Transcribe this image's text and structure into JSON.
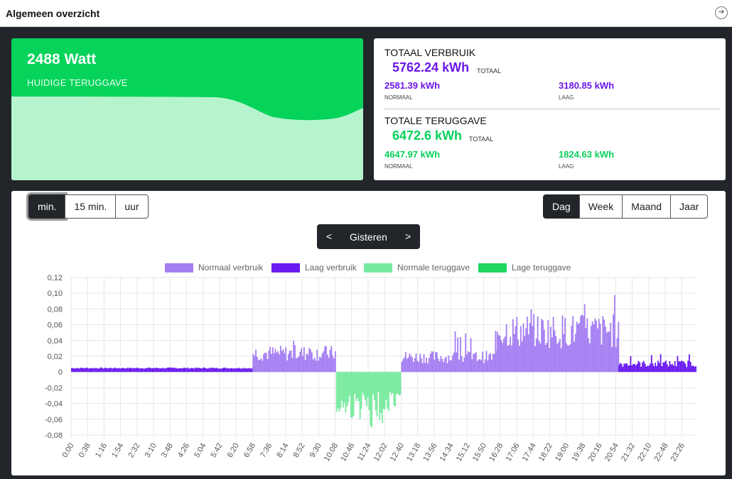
{
  "window": {
    "title": "Algemeen overzicht",
    "nav_icon": "arrow-right-circle-icon"
  },
  "live": {
    "power": "2488 Watt",
    "label": "HUIDIGE TERUGGAVE",
    "color": "#05d35a",
    "area_color": "#b6f4cd"
  },
  "totals": {
    "consumption": {
      "heading": "TOTAAL VERBRUIK",
      "total": "5762.24 kWh",
      "total_unit": "TOTAAL",
      "normal": "2581.39 kWh",
      "normal_label": "NORMAAL",
      "low": "3180.85 kWh",
      "low_label": "LAAG"
    },
    "return": {
      "heading": "TOTALE TERUGGAVE",
      "total": "6472.6 kWh",
      "total_unit": "TOTAAL",
      "normal": "4647.97 kWh",
      "normal_label": "NORMAAL",
      "low": "1824.63 kWh",
      "low_label": "LAAG"
    }
  },
  "controls": {
    "resolution": [
      "min.",
      "15 min.",
      "uur"
    ],
    "resolution_active": 0,
    "period": [
      "Dag",
      "Week",
      "Maand",
      "Jaar"
    ],
    "period_active": 0,
    "day_label": "Gisteren",
    "prev": "<",
    "next": ">"
  },
  "chart_data": {
    "type": "bar",
    "legend_position": "top",
    "grid": true,
    "ylim": [
      -0.08,
      0.12
    ],
    "y_ticks": [
      "0,12",
      "0,10",
      "0,08",
      "0,06",
      "0,04",
      "0,02",
      "0",
      "-0,02",
      "-0,04",
      "-0,06",
      "-0,08"
    ],
    "x_ticks": [
      "0:00",
      "0:38",
      "1:16",
      "1:54",
      "2:32",
      "3:10",
      "3:48",
      "4:26",
      "5:04",
      "5:42",
      "6:20",
      "6:58",
      "7:36",
      "8:14",
      "8:52",
      "9:30",
      "10:08",
      "10:46",
      "11:24",
      "12:02",
      "12:40",
      "13:18",
      "13:56",
      "14:34",
      "15:12",
      "15:50",
      "16:28",
      "17:06",
      "17:44",
      "18:22",
      "19:00",
      "19:38",
      "20:16",
      "20:54",
      "21:32",
      "22:10",
      "22:48",
      "23:26"
    ],
    "series": [
      {
        "name": "Normaal verbruik",
        "color": "#a57ff2"
      },
      {
        "name": "Laag verbruik",
        "color": "#6a1cf0"
      },
      {
        "name": "Normale teruggave",
        "color": "#78ea9f"
      },
      {
        "name": "Lage teruggave",
        "color": "#1ed860"
      }
    ],
    "segments": [
      {
        "from": "0:00",
        "to": "6:58",
        "series": "Laag verbruik",
        "level": 0.005
      },
      {
        "from": "6:58",
        "to": "10:10",
        "series": "Normaal verbruik",
        "level": 0.025,
        "peak": 0.04
      },
      {
        "from": "10:10",
        "to": "12:40",
        "series": "Normale teruggave",
        "level": -0.045,
        "peak": -0.078
      },
      {
        "from": "12:40",
        "to": "16:20",
        "series": "Normaal verbruik",
        "level": 0.02,
        "peak": 0.055
      },
      {
        "from": "16:20",
        "to": "21:00",
        "series": "Normaal verbruik",
        "level": 0.055,
        "peak": 0.103
      },
      {
        "from": "21:00",
        "to": "24:00",
        "series": "Laag verbruik",
        "level": 0.011,
        "peak": 0.025
      }
    ]
  }
}
